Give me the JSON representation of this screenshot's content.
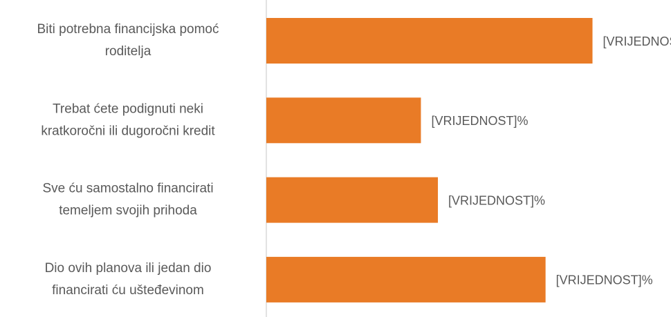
{
  "chart_data": {
    "type": "hbar",
    "categories": [
      [
        "Biti potrebna financijska pomoć",
        "roditelja"
      ],
      [
        "Trebat ćete podignuti neki",
        "kratkoročni ili dugoročni kredit"
      ],
      [
        "Sve ću samostalno financirati",
        "temeljem svojih prihoda"
      ],
      [
        "Dio ovih planova ili jedan dio",
        "financirati ću ušteđevinom"
      ]
    ],
    "values": [
      40.3,
      19.1,
      21.2,
      34.5
    ],
    "value_labels": [
      "[VRIJEDNOST]%",
      "[VRIJEDNOST]%",
      "[VRIJEDNOST]%",
      "[VRIJEDNOST]%"
    ],
    "color": "#e97b26",
    "xlim": [
      0,
      50
    ]
  }
}
